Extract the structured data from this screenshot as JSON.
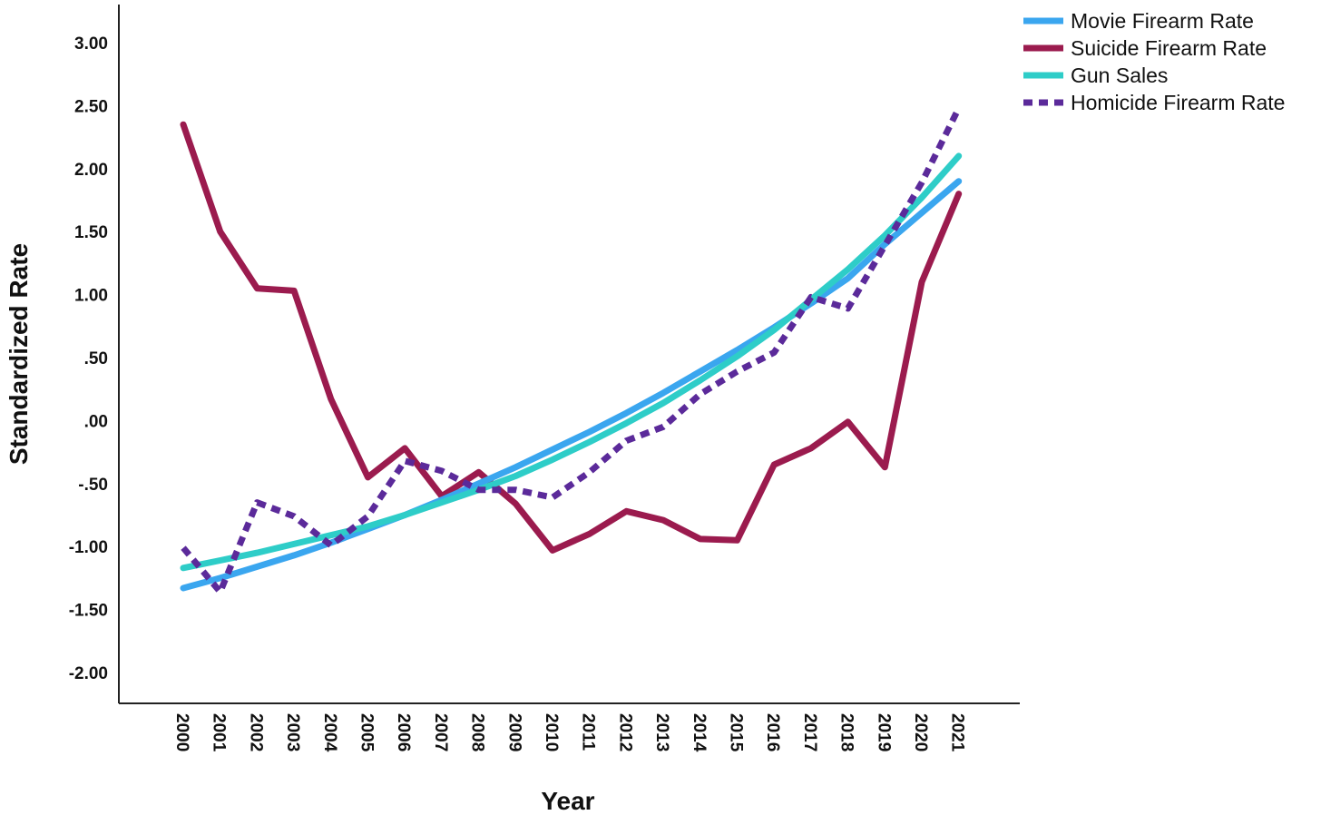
{
  "chart_data": {
    "type": "line",
    "title": "",
    "xlabel": "Year",
    "ylabel": "Standardized Rate",
    "ylim": [
      -2.0,
      3.0
    ],
    "yticks": [
      {
        "value": 3.0,
        "label": "3.00"
      },
      {
        "value": 2.5,
        "label": "2.50"
      },
      {
        "value": 2.0,
        "label": "2.00"
      },
      {
        "value": 1.5,
        "label": "1.50"
      },
      {
        "value": 1.0,
        "label": "1.00"
      },
      {
        "value": 0.5,
        "label": ".50"
      },
      {
        "value": 0.0,
        "label": ".00"
      },
      {
        "value": -0.5,
        "label": "-.50"
      },
      {
        "value": -1.0,
        "label": "-1.00"
      },
      {
        "value": -1.5,
        "label": "-1.50"
      },
      {
        "value": -2.0,
        "label": "-2.00"
      }
    ],
    "categories": [
      "2000",
      "2001",
      "2002",
      "2003",
      "2004",
      "2005",
      "2006",
      "2007",
      "2008",
      "2009",
      "2010",
      "2011",
      "2012",
      "2013",
      "2014",
      "2015",
      "2016",
      "2017",
      "2018",
      "2019",
      "2020",
      "2021"
    ],
    "grid": false,
    "legend_position": "top-right",
    "series": [
      {
        "name": "Movie Firearm Rate",
        "color": "#3aa6ef",
        "dash": false,
        "values": [
          -1.33,
          -1.25,
          -1.16,
          -1.07,
          -0.97,
          -0.86,
          -0.75,
          -0.63,
          -0.5,
          -0.37,
          -0.23,
          -0.09,
          0.06,
          0.22,
          0.39,
          0.56,
          0.74,
          0.93,
          1.13,
          1.4,
          1.65,
          1.9
        ]
      },
      {
        "name": "Suicide Firearm Rate",
        "color": "#9b1b4e",
        "dash": false,
        "values": [
          2.35,
          1.5,
          1.05,
          1.03,
          0.17,
          -0.45,
          -0.22,
          -0.6,
          -0.41,
          -0.66,
          -1.03,
          -0.9,
          -0.72,
          -0.79,
          -0.94,
          -0.95,
          -0.35,
          -0.22,
          -0.01,
          -0.37,
          1.1,
          1.8
        ]
      },
      {
        "name": "Gun Sales",
        "color": "#2ecdc8",
        "dash": false,
        "values": [
          -1.17,
          -1.11,
          -1.05,
          -0.98,
          -0.91,
          -0.84,
          -0.75,
          -0.65,
          -0.55,
          -0.44,
          -0.31,
          -0.17,
          -0.02,
          0.14,
          0.32,
          0.51,
          0.72,
          0.96,
          1.2,
          1.47,
          1.77,
          2.1
        ]
      },
      {
        "name": "Homicide Firearm Rate",
        "color": "#5b2a9a",
        "dash": true,
        "values": [
          -1.01,
          -1.36,
          -0.65,
          -0.76,
          -0.99,
          -0.76,
          -0.32,
          -0.4,
          -0.55,
          -0.55,
          -0.61,
          -0.41,
          -0.16,
          -0.05,
          0.21,
          0.39,
          0.54,
          0.98,
          0.89,
          1.39,
          1.89,
          2.48
        ]
      }
    ]
  }
}
